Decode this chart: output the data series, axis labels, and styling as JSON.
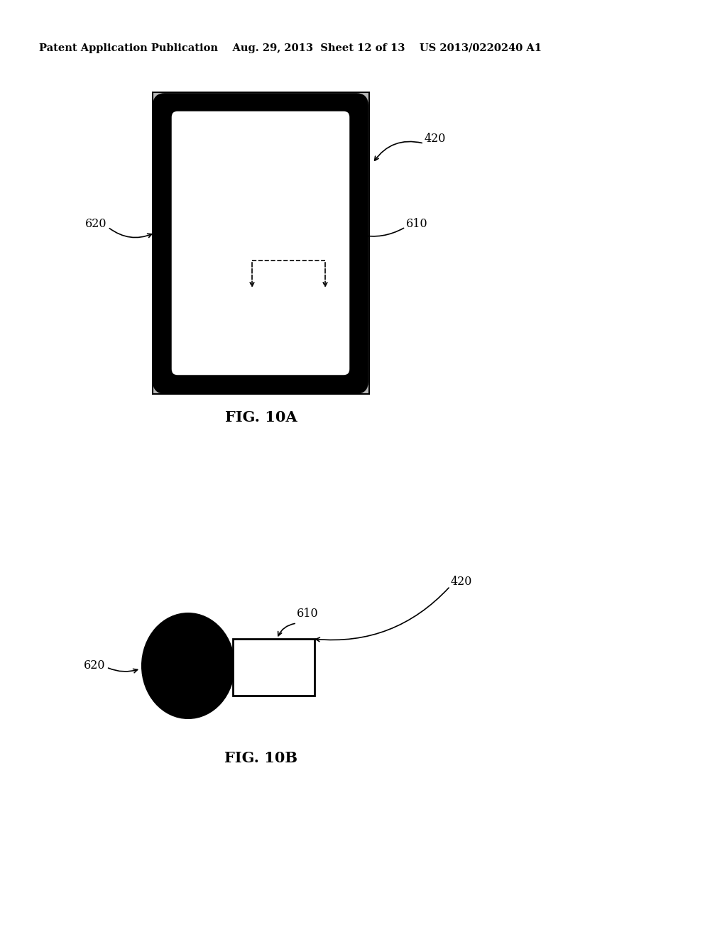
{
  "bg_color": "#ffffff",
  "header_text": "Patent Application Publication    Aug. 29, 2013  Sheet 12 of 13    US 2013/0220240 A1",
  "header_fontsize": 10.5,
  "fig10a_label": "FIG. 10A",
  "fig10a_label_fontsize": 15,
  "fig10b_label": "FIG. 10B",
  "fig10b_label_fontsize": 15,
  "fontsize_labels": 11.5,
  "outer_gray": "#b8b8b8",
  "outer_lw": 1.5,
  "inner_black_lw": 7.0,
  "white_inner_lw": 2.5
}
